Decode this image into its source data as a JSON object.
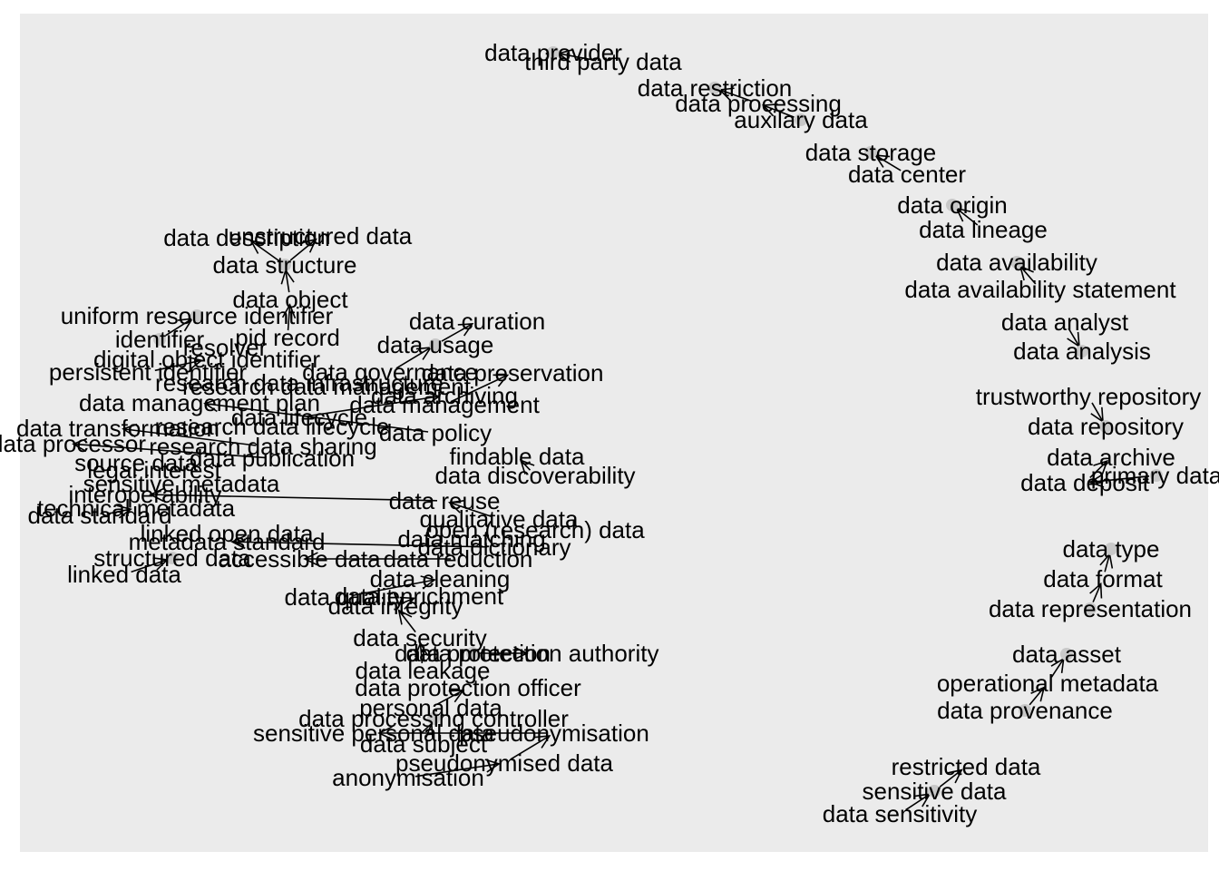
{
  "graph": {
    "nodes": [
      {
        "id": "data-provider",
        "label": "data provider"
      },
      {
        "id": "third-party-data",
        "label": "third party data"
      },
      {
        "id": "data-restriction",
        "label": "data restriction"
      },
      {
        "id": "data-processing",
        "label": "data processing"
      },
      {
        "id": "auxiliary-data",
        "label": "auxilary data"
      },
      {
        "id": "data-storage",
        "label": "data storage"
      },
      {
        "id": "data-center",
        "label": "data center"
      },
      {
        "id": "data-origin",
        "label": "data origin"
      },
      {
        "id": "data-lineage",
        "label": "data lineage"
      },
      {
        "id": "data-availability",
        "label": "data availability"
      },
      {
        "id": "data-availability-statement",
        "label": "data availability statement"
      },
      {
        "id": "data-analyst",
        "label": "data analyst"
      },
      {
        "id": "data-analysis",
        "label": "data analysis"
      },
      {
        "id": "trustworthy-repository",
        "label": "trustworthy repository"
      },
      {
        "id": "data-repository",
        "label": "data repository"
      },
      {
        "id": "data-archive",
        "label": "data archive"
      },
      {
        "id": "data-deposit",
        "label": "data deposit"
      },
      {
        "id": "primary-data",
        "label": "primary data"
      },
      {
        "id": "data-type",
        "label": "data type"
      },
      {
        "id": "data-format",
        "label": "data format"
      },
      {
        "id": "data-representation",
        "label": "data representation"
      },
      {
        "id": "data-asset",
        "label": "data asset"
      },
      {
        "id": "operational-metadata",
        "label": "operational metadata"
      },
      {
        "id": "data-provenance",
        "label": "data provenance"
      },
      {
        "id": "restricted-data",
        "label": "restricted data"
      },
      {
        "id": "sensitive-data",
        "label": "sensitive data"
      },
      {
        "id": "data-sensitivity",
        "label": "data sensitivity"
      },
      {
        "id": "data-description",
        "label": "data description"
      },
      {
        "id": "unstructured-data",
        "label": "unstructured data"
      },
      {
        "id": "data-structure",
        "label": "data structure"
      },
      {
        "id": "data-object",
        "label": "data object"
      },
      {
        "id": "uniform-resource-identifier",
        "label": "uniform resource identifier"
      },
      {
        "id": "pid-record",
        "label": "pid record"
      },
      {
        "id": "identifier",
        "label": "identifier"
      },
      {
        "id": "resolver",
        "label": "resolver"
      },
      {
        "id": "digital-object-identifier",
        "label": "digital object identifier"
      },
      {
        "id": "persistent-identifier",
        "label": "persistent identifier"
      },
      {
        "id": "data-curation",
        "label": "data curation"
      },
      {
        "id": "data-usage",
        "label": "data usage"
      },
      {
        "id": "data-governance",
        "label": "data governance"
      },
      {
        "id": "data-preservation",
        "label": "data preservation"
      },
      {
        "id": "research-data-infrastructure",
        "label": "research data infrastructure"
      },
      {
        "id": "data-archiving",
        "label": "data archiving"
      },
      {
        "id": "data-management",
        "label": "data management"
      },
      {
        "id": "research-data-management",
        "label": "research data management"
      },
      {
        "id": "data-management-plan",
        "label": "data management plan"
      },
      {
        "id": "data-lifecycle",
        "label": "data lifecycle"
      },
      {
        "id": "research-data-lifecycle",
        "label": "research data lifecycle"
      },
      {
        "id": "data-policy",
        "label": "data policy"
      },
      {
        "id": "data-transformation",
        "label": "data transformation"
      },
      {
        "id": "research-data-sharing",
        "label": "research data sharing"
      },
      {
        "id": "data-processor",
        "label": "data processor"
      },
      {
        "id": "data-publication",
        "label": "data publication"
      },
      {
        "id": "findable-data",
        "label": "findable data"
      },
      {
        "id": "source-data",
        "label": "source data"
      },
      {
        "id": "data-discoverability",
        "label": "data discoverability"
      },
      {
        "id": "legal-interest",
        "label": "legal interest"
      },
      {
        "id": "interoperability",
        "label": "interoperability"
      },
      {
        "id": "technical-metadata",
        "label": "technical metadata"
      },
      {
        "id": "data-standard",
        "label": "data standard"
      },
      {
        "id": "data-reuse",
        "label": "data reuse"
      },
      {
        "id": "sensitive-metadata",
        "label": "sensitive metadata"
      },
      {
        "id": "linked-open-data",
        "label": "linked open data"
      },
      {
        "id": "qualitative-data",
        "label": "qualitative data"
      },
      {
        "id": "open-research-data",
        "label": "open (research) data"
      },
      {
        "id": "metadata-standard",
        "label": "metadata standard"
      },
      {
        "id": "data-matching",
        "label": "data matching"
      },
      {
        "id": "data-dictionary",
        "label": "data dictionary"
      },
      {
        "id": "structured-data",
        "label": "structured data"
      },
      {
        "id": "accessible-data",
        "label": "accessible data"
      },
      {
        "id": "data-reduction",
        "label": "data reduction"
      },
      {
        "id": "linked-data",
        "label": "linked data"
      },
      {
        "id": "data-cleaning",
        "label": "data cleaning"
      },
      {
        "id": "data-quality",
        "label": "data quality"
      },
      {
        "id": "data-enrichment",
        "label": "data enrichment"
      },
      {
        "id": "data-integrity",
        "label": "data integrity"
      },
      {
        "id": "data-security",
        "label": "data security"
      },
      {
        "id": "data-protection",
        "label": "data protection"
      },
      {
        "id": "data-protection-authority",
        "label": "data protection authority"
      },
      {
        "id": "data-leakage",
        "label": "data leakage"
      },
      {
        "id": "data-protection-officer",
        "label": "data protection officer"
      },
      {
        "id": "personal-data",
        "label": "personal data"
      },
      {
        "id": "data-processing-controller",
        "label": "data processing controller"
      },
      {
        "id": "sensitive-personal-data",
        "label": "sensitive personal data"
      },
      {
        "id": "pseudonymisation",
        "label": "pseudonymisation"
      },
      {
        "id": "data-subject",
        "label": "data subject"
      },
      {
        "id": "pseudonymised-data",
        "label": "pseudonymised data"
      },
      {
        "id": "anonymisation",
        "label": "anonymisation"
      }
    ],
    "edges": [
      [
        "third-party-data",
        "data-provider"
      ],
      [
        "data-processing",
        "data-restriction"
      ],
      [
        "auxiliary-data",
        "data-processing"
      ],
      [
        "data-center",
        "data-storage"
      ],
      [
        "data-lineage",
        "data-origin"
      ],
      [
        "data-availability-statement",
        "data-availability"
      ],
      [
        "data-analyst",
        "data-analysis"
      ],
      [
        "trustworthy-repository",
        "data-repository"
      ],
      [
        "data-deposit",
        "data-archive"
      ],
      [
        "primary-data",
        "data-deposit"
      ],
      [
        "data-format",
        "data-type"
      ],
      [
        "data-representation",
        "data-format"
      ],
      [
        "operational-metadata",
        "data-asset"
      ],
      [
        "data-provenance",
        "operational-metadata"
      ],
      [
        "sensitive-data",
        "restricted-data"
      ],
      [
        "data-sensitivity",
        "sensitive-data"
      ],
      [
        "data-structure",
        "data-description"
      ],
      [
        "data-structure",
        "unstructured-data"
      ],
      [
        "data-object",
        "data-structure"
      ],
      [
        "pid-record",
        "data-object"
      ],
      [
        "identifier",
        "uniform-resource-identifier"
      ],
      [
        "persistent-identifier",
        "digital-object-identifier"
      ],
      [
        "data-usage",
        "data-curation"
      ],
      [
        "data-governance",
        "data-usage"
      ],
      [
        "data-management",
        "data-preservation"
      ],
      [
        "data-lifecycle",
        "data-archiving"
      ],
      [
        "data-policy",
        "data-management-plan"
      ],
      [
        "research-data-sharing",
        "data-transformation"
      ],
      [
        "data-publication",
        "data-processor"
      ],
      [
        "data-discoverability",
        "findable-data"
      ],
      [
        "data-reuse",
        "interoperability"
      ],
      [
        "data-standard",
        "technical-metadata"
      ],
      [
        "qualitative-data",
        "data-reuse"
      ],
      [
        "data-dictionary",
        "metadata-standard"
      ],
      [
        "linked-data",
        "structured-data"
      ],
      [
        "data-reduction",
        "accessible-data"
      ],
      [
        "data-quality",
        "data-cleaning"
      ],
      [
        "data-integrity",
        "data-enrichment"
      ],
      [
        "data-security",
        "data-integrity"
      ],
      [
        "data-protection",
        "data-protection-authority"
      ],
      [
        "data-leakage",
        "data-security"
      ],
      [
        "personal-data",
        "data-protection-officer"
      ],
      [
        "data-subject",
        "data-processing-controller"
      ],
      [
        "pseudonymisation",
        "sensitive-personal-data"
      ],
      [
        "pseudonymised-data",
        "pseudonymisation"
      ],
      [
        "anonymisation",
        "pseudonymised-data"
      ]
    ]
  }
}
